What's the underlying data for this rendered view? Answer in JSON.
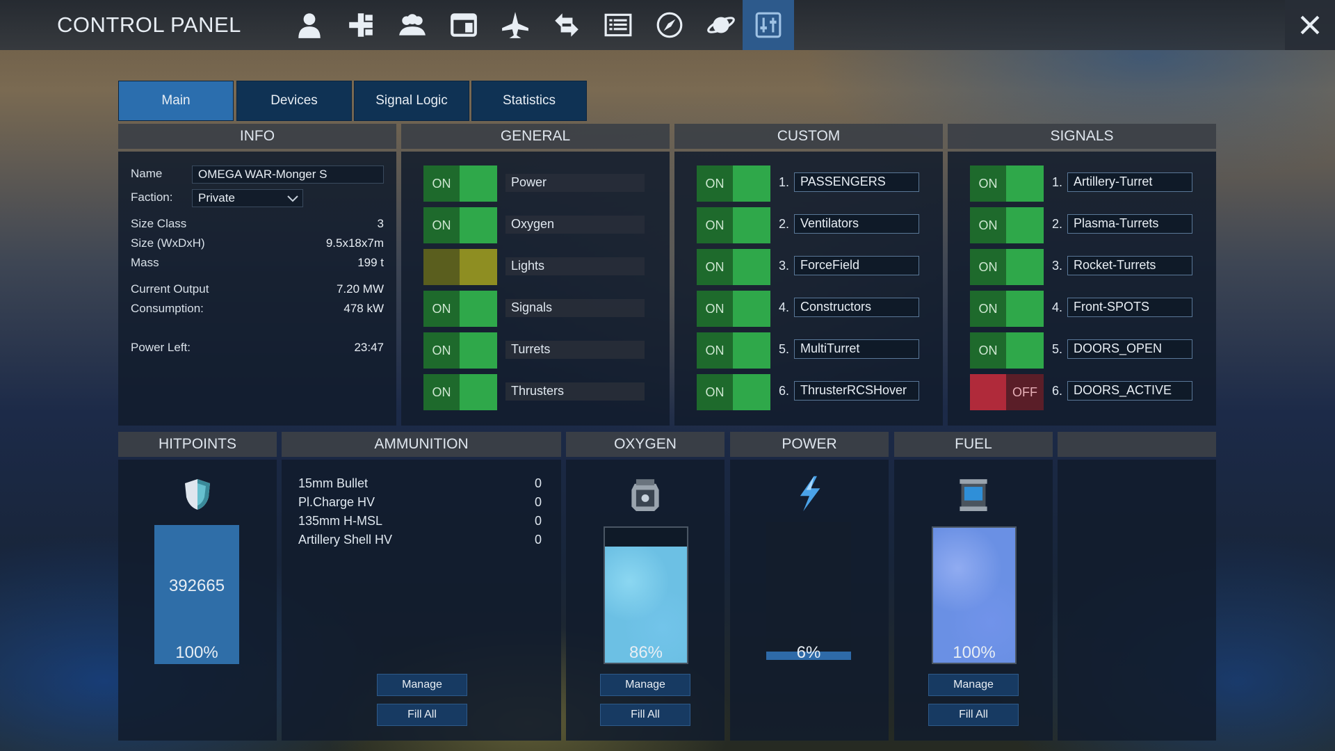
{
  "app": {
    "title": "CONTROL PANEL"
  },
  "nav_icons": [
    "player-icon",
    "structure-icon",
    "group-icon",
    "window-icon",
    "ship-icon",
    "transfer-icon",
    "list-icon",
    "compass-icon",
    "planet-icon",
    "control-panel-icon"
  ],
  "tabs": [
    {
      "label": "Main",
      "active": true
    },
    {
      "label": "Devices",
      "active": false
    },
    {
      "label": "Signal Logic",
      "active": false
    },
    {
      "label": "Statistics",
      "active": false
    }
  ],
  "info": {
    "header": "INFO",
    "name_label": "Name",
    "name_value": "OMEGA WAR-Monger S",
    "faction_label": "Faction:",
    "faction_value": "Private",
    "rows": [
      {
        "label": "Size Class",
        "value": "3"
      },
      {
        "label": "Size (WxDxH)",
        "value": "9.5x18x7m"
      },
      {
        "label": "Mass",
        "value": "199 t"
      },
      {
        "label": "Current Output",
        "value": "7.20 MW"
      },
      {
        "label": "Consumption:",
        "value": "478 kW"
      },
      {
        "label": "Power Left:",
        "value": "23:47"
      }
    ]
  },
  "general": {
    "header": "GENERAL",
    "items": [
      {
        "state": "ON",
        "label": "Power",
        "color": "green"
      },
      {
        "state": "ON",
        "label": "Oxygen",
        "color": "green"
      },
      {
        "state": "",
        "label": "Lights",
        "color": "yellow"
      },
      {
        "state": "ON",
        "label": "Signals",
        "color": "green"
      },
      {
        "state": "ON",
        "label": "Turrets",
        "color": "green"
      },
      {
        "state": "ON",
        "label": "Thrusters",
        "color": "green"
      }
    ]
  },
  "custom": {
    "header": "CUSTOM",
    "items": [
      {
        "state": "ON",
        "num": "1.",
        "label": "PASSENGERS"
      },
      {
        "state": "ON",
        "num": "2.",
        "label": "Ventilators"
      },
      {
        "state": "ON",
        "num": "3.",
        "label": "ForceField"
      },
      {
        "state": "ON",
        "num": "4.",
        "label": "Constructors"
      },
      {
        "state": "ON",
        "num": "5.",
        "label": "MultiTurret"
      },
      {
        "state": "ON",
        "num": "6.",
        "label": "ThrusterRCSHover"
      }
    ]
  },
  "signals": {
    "header": "SIGNALS",
    "items": [
      {
        "state": "ON",
        "num": "1.",
        "label": "Artillery-Turret"
      },
      {
        "state": "ON",
        "num": "2.",
        "label": "Plasma-Turrets"
      },
      {
        "state": "ON",
        "num": "3.",
        "label": "Rocket-Turrets"
      },
      {
        "state": "ON",
        "num": "4.",
        "label": "Front-SPOTS"
      },
      {
        "state": "ON",
        "num": "5.",
        "label": "DOORS_OPEN"
      },
      {
        "state": "OFF",
        "num": "6.",
        "label": "DOORS_ACTIVE"
      }
    ]
  },
  "hitpoints": {
    "header": "HITPOINTS",
    "value": "392665",
    "percent": "100%",
    "fraction": 1.0
  },
  "ammunition": {
    "header": "AMMUNITION",
    "items": [
      {
        "name": "15mm Bullet",
        "count": "0"
      },
      {
        "name": "Pl.Charge HV",
        "count": "0"
      },
      {
        "name": "135mm H-MSL",
        "count": "0"
      },
      {
        "name": "Artillery Shell HV",
        "count": "0"
      }
    ],
    "manage_label": "Manage",
    "fill_label": "Fill All"
  },
  "oxygen": {
    "header": "OXYGEN",
    "percent": "86%",
    "fraction": 0.86,
    "manage_label": "Manage",
    "fill_label": "Fill All"
  },
  "power": {
    "header": "POWER",
    "percent": "6%",
    "fraction": 0.06
  },
  "fuel": {
    "header": "FUEL",
    "percent": "100%",
    "fraction": 1.0,
    "manage_label": "Manage",
    "fill_label": "Fill All"
  },
  "colors": {
    "accent": "#2b6eae",
    "on": "#2fa84a",
    "off": "#b02a3a",
    "lights": "#8e8e22"
  }
}
